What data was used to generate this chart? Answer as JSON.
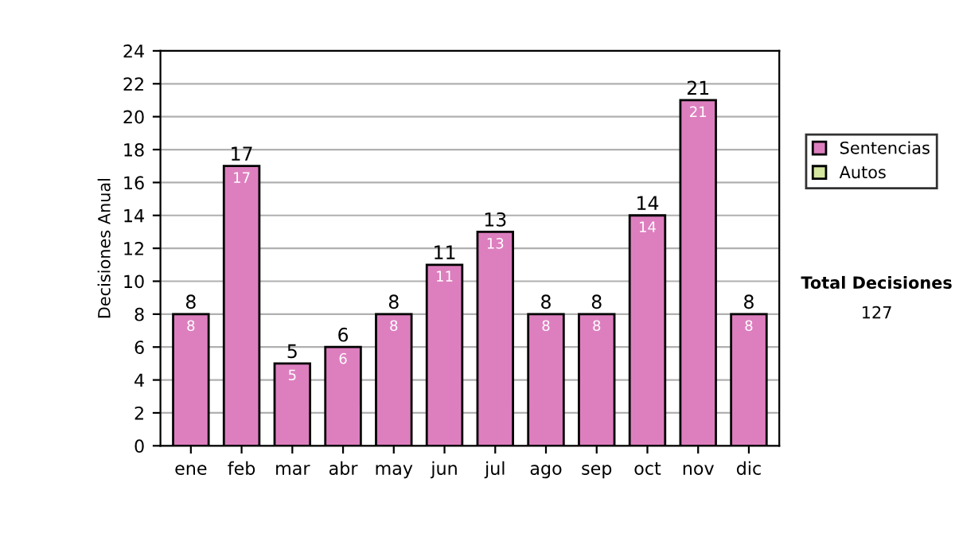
{
  "chart_data": {
    "type": "bar",
    "stacked": true,
    "ylabel": "Decisiones Anual",
    "categories": [
      "ene",
      "feb",
      "mar",
      "abr",
      "may",
      "jun",
      "jul",
      "ago",
      "sep",
      "oct",
      "nov",
      "dic"
    ],
    "series": [
      {
        "name": "Sentencias",
        "color": "#dd7fbf",
        "values": [
          8,
          17,
          5,
          6,
          8,
          11,
          13,
          8,
          8,
          14,
          21,
          8
        ],
        "value_labels": [
          "8",
          "17",
          "5",
          "6",
          "8",
          "11",
          "13",
          "8",
          "8",
          "14",
          "21",
          "8"
        ]
      },
      {
        "name": "Autos",
        "color": "#d4e6a0",
        "values": [
          0,
          0,
          0,
          0,
          0,
          0,
          0,
          0,
          0,
          0,
          0,
          0
        ]
      }
    ],
    "totals": [
      "8",
      "17",
      "5",
      "6",
      "8",
      "11",
      "13",
      "8",
      "8",
      "14",
      "21",
      "8"
    ],
    "ylim": [
      0,
      24
    ],
    "yticks": [
      0,
      2,
      4,
      6,
      8,
      10,
      12,
      14,
      16,
      18,
      20,
      22,
      24
    ],
    "grid": "y",
    "legend": "right",
    "annotations": [
      "Total Decisiones",
      "127"
    ]
  }
}
